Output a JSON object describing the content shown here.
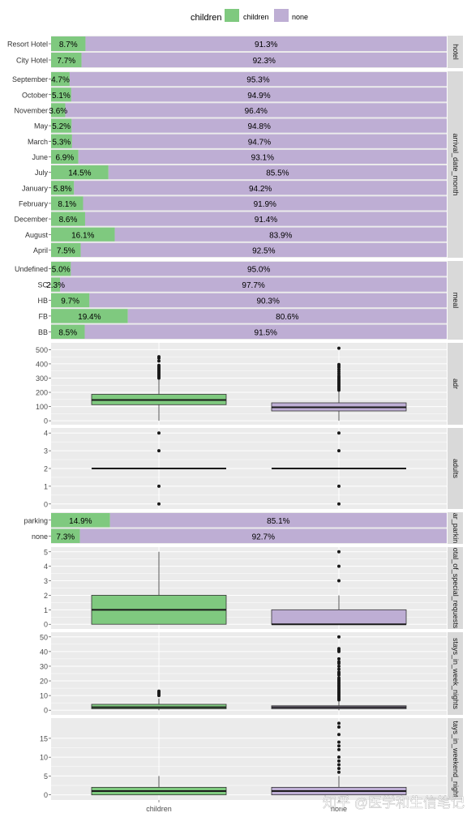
{
  "legend": {
    "title": "children",
    "items": [
      {
        "label": "children",
        "color": "#7fc97f"
      },
      {
        "label": "none",
        "color": "#beaed4"
      }
    ]
  },
  "colors": {
    "children": "#7fc97f",
    "none": "#beaed4",
    "panel_bg": "#ebebeb",
    "strip_bg": "#d9d9d9",
    "grid": "#ffffff"
  },
  "chart_data": [
    {
      "type": "bar",
      "orientation": "horizontal",
      "stacked": true,
      "strip": "hotel",
      "categories": [
        "Resort Hotel",
        "City Hotel"
      ],
      "series": [
        {
          "name": "children",
          "values": [
            8.7,
            7.7
          ],
          "labels": [
            "8.7%",
            "7.7%"
          ]
        },
        {
          "name": "none",
          "values": [
            91.3,
            92.3
          ],
          "labels": [
            "91.3%",
            "92.3%"
          ]
        }
      ]
    },
    {
      "type": "bar",
      "orientation": "horizontal",
      "stacked": true,
      "strip": "arrival_date_month",
      "categories": [
        "September",
        "October",
        "November",
        "May",
        "March",
        "June",
        "July",
        "January",
        "February",
        "December",
        "August",
        "April"
      ],
      "series": [
        {
          "name": "children",
          "values": [
            4.7,
            5.1,
            3.6,
            5.2,
            5.3,
            6.9,
            14.5,
            5.8,
            8.1,
            8.6,
            16.1,
            7.5
          ],
          "labels": [
            "4.7%",
            "5.1%",
            "3.6%",
            "5.2%",
            "5.3%",
            "6.9%",
            "14.5%",
            "5.8%",
            "8.1%",
            "8.6%",
            "16.1%",
            "7.5%"
          ]
        },
        {
          "name": "none",
          "values": [
            95.3,
            94.9,
            96.4,
            94.8,
            94.7,
            93.1,
            85.5,
            94.2,
            91.9,
            91.4,
            83.9,
            92.5
          ],
          "labels": [
            "95.3%",
            "94.9%",
            "96.4%",
            "94.8%",
            "94.7%",
            "93.1%",
            "85.5%",
            "94.2%",
            "91.9%",
            "91.4%",
            "83.9%",
            "92.5%"
          ]
        }
      ]
    },
    {
      "type": "bar",
      "orientation": "horizontal",
      "stacked": true,
      "strip": "meal",
      "categories": [
        "Undefined",
        "SC",
        "HB",
        "FB",
        "BB"
      ],
      "series": [
        {
          "name": "children",
          "values": [
            5.0,
            2.3,
            9.7,
            19.4,
            8.5
          ],
          "labels": [
            "5.0%",
            "2.3%",
            "9.7%",
            "19.4%",
            "8.5%"
          ]
        },
        {
          "name": "none",
          "values": [
            95.0,
            97.7,
            90.3,
            80.6,
            91.5
          ],
          "labels": [
            "95.0%",
            "97.7%",
            "90.3%",
            "80.6%",
            "91.5%"
          ]
        }
      ]
    },
    {
      "type": "boxplot",
      "strip": "adr",
      "categories": [
        "children",
        "none"
      ],
      "yticks": [
        0,
        100,
        200,
        300,
        400,
        500
      ],
      "ylim": [
        -5,
        525
      ],
      "boxes": [
        {
          "q1": 113,
          "median": 146,
          "q3": 186,
          "lower": 0,
          "upper": 295,
          "outliers": [
            300,
            310,
            320,
            330,
            340,
            350,
            360,
            370,
            380,
            390,
            420,
            440,
            450
          ]
        },
        {
          "q1": 69,
          "median": 95,
          "q3": 126,
          "lower": 0,
          "upper": 212,
          "outliers": [
            215,
            225,
            235,
            245,
            255,
            265,
            275,
            285,
            295,
            305,
            315,
            330,
            345,
            360,
            375,
            385,
            395,
            510
          ]
        }
      ]
    },
    {
      "type": "boxplot",
      "strip": "adults",
      "categories": [
        "children",
        "none"
      ],
      "yticks": [
        0,
        1,
        2,
        3,
        4
      ],
      "ylim": [
        -0.1,
        4.1
      ],
      "boxes": [
        {
          "q1": 2,
          "median": 2,
          "q3": 2,
          "lower": 2,
          "upper": 2,
          "outliers": [
            0,
            1,
            3,
            4
          ]
        },
        {
          "q1": 2,
          "median": 2,
          "q3": 2,
          "lower": 2,
          "upper": 2,
          "outliers": [
            0,
            1,
            3,
            4
          ]
        }
      ]
    },
    {
      "type": "bar",
      "orientation": "horizontal",
      "stacked": true,
      "strip": "ar_parkin",
      "categories": [
        "parking",
        "none"
      ],
      "series": [
        {
          "name": "children",
          "values": [
            14.9,
            7.3
          ],
          "labels": [
            "14.9%",
            "7.3%"
          ]
        },
        {
          "name": "none",
          "values": [
            85.1,
            92.7
          ],
          "labels": [
            "85.1%",
            "92.7%"
          ]
        }
      ]
    },
    {
      "type": "boxplot",
      "strip": "otal_of_special_requests",
      "categories": [
        "children",
        "none"
      ],
      "yticks": [
        0,
        1,
        2,
        3,
        4,
        5
      ],
      "ylim": [
        -0.1,
        5.1
      ],
      "boxes": [
        {
          "q1": 0,
          "median": 1,
          "q3": 2,
          "lower": 0,
          "upper": 5,
          "outliers": []
        },
        {
          "q1": 0,
          "median": 0,
          "q3": 1,
          "lower": 0,
          "upper": 2,
          "outliers": [
            3,
            4,
            5
          ]
        }
      ]
    },
    {
      "type": "boxplot",
      "strip": "stays_in_week_nights",
      "categories": [
        "children",
        "none"
      ],
      "yticks": [
        0,
        10,
        20,
        30,
        40,
        50
      ],
      "ylim": [
        -1,
        51
      ],
      "boxes": [
        {
          "q1": 1,
          "median": 2,
          "q3": 4,
          "lower": 0,
          "upper": 8,
          "outliers": [
            10,
            11,
            12,
            13
          ]
        },
        {
          "q1": 1,
          "median": 2,
          "q3": 3,
          "lower": 0,
          "upper": 6,
          "outliers": [
            7,
            8,
            9,
            10,
            11,
            12,
            13,
            14,
            15,
            16,
            17,
            18,
            19,
            20,
            21,
            22,
            24,
            25,
            26,
            28,
            30,
            32,
            33,
            35,
            40,
            41,
            42,
            50
          ]
        }
      ]
    },
    {
      "type": "boxplot",
      "strip": "tays_in_weekend_night",
      "categories": [
        "children",
        "none"
      ],
      "yticks": [
        0,
        5,
        10,
        15
      ],
      "ylim": [
        -0.5,
        19.5
      ],
      "boxes": [
        {
          "q1": 0,
          "median": 1,
          "q3": 2,
          "lower": 0,
          "upper": 5,
          "outliers": []
        },
        {
          "q1": 0,
          "median": 1,
          "q3": 2,
          "lower": 0,
          "upper": 5,
          "outliers": [
            6,
            7,
            8,
            9,
            10,
            12,
            13,
            14,
            16,
            18,
            19
          ]
        }
      ]
    }
  ],
  "x_labels": [
    "children",
    "none"
  ],
  "watermark": "知乎 @医学和生信笔记"
}
